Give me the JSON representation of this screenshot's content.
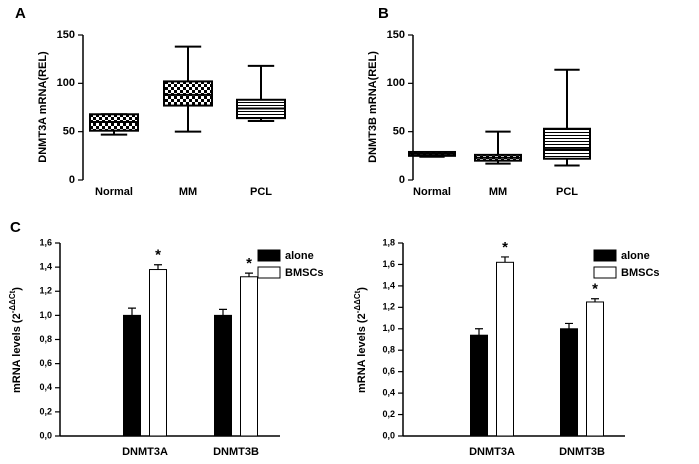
{
  "chart_data": [
    {
      "type": "box",
      "panel_label": "A",
      "ylabel": "DNMT3A mRNA(REL)",
      "categories": [
        "Normal",
        "MM",
        "PCL"
      ],
      "boxes": [
        {
          "min": 47,
          "q1": 51,
          "median": 60,
          "q3": 68,
          "max": 68
        },
        {
          "min": 50,
          "q1": 77,
          "median": 88,
          "q3": 102,
          "max": 138
        },
        {
          "min": 61,
          "q1": 64,
          "median": 74,
          "q3": 83,
          "max": 118
        }
      ],
      "patterns": [
        "checker",
        "checker",
        "lines"
      ],
      "ylim": [
        0,
        150
      ],
      "yticks": [
        0,
        50,
        100,
        150
      ]
    },
    {
      "type": "box",
      "panel_label": "B",
      "ylabel": "DNMT3B mRNA(REL)",
      "categories": [
        "Normal",
        "MM",
        "PCL"
      ],
      "boxes": [
        {
          "min": 24,
          "q1": 25,
          "median": 27,
          "q3": 29,
          "max": 29
        },
        {
          "min": 17,
          "q1": 20,
          "median": 23,
          "q3": 26,
          "max": 50
        },
        {
          "min": 15,
          "q1": 22,
          "median": 32,
          "q3": 53,
          "max": 114
        }
      ],
      "patterns": [
        "checker",
        "checker",
        "lines"
      ],
      "ylim": [
        0,
        150
      ],
      "yticks": [
        0,
        50,
        100,
        150
      ]
    },
    {
      "type": "bar",
      "panel_label": "C",
      "ylabel": {
        "base": "mRNA levels (2",
        "superscript": "-ΔΔCt",
        "end": ")"
      },
      "categories": [
        "DNMT3A",
        "DNMT3B"
      ],
      "series": [
        {
          "name": "alone",
          "color": "#000000",
          "values": [
            1.0,
            1.0
          ],
          "errors": [
            0.06,
            0.05
          ]
        },
        {
          "name": "BMSCs",
          "color": "#ffffff",
          "values": [
            1.38,
            1.32
          ],
          "errors": [
            0.04,
            0.03
          ],
          "annotations": [
            "*",
            "*"
          ]
        }
      ],
      "ylim": [
        0,
        1.6
      ],
      "yticks": [
        {
          "value": 0,
          "label": "0,0"
        },
        {
          "value": 0.2,
          "label": "0,2"
        },
        {
          "value": 0.4,
          "label": "0,4"
        },
        {
          "value": 0.6,
          "label": "0,6"
        },
        {
          "value": 0.8,
          "label": "0,8"
        },
        {
          "value": 1.0,
          "label": "1,0"
        },
        {
          "value": 1.2,
          "label": "1,2"
        },
        {
          "value": 1.4,
          "label": "1,4"
        },
        {
          "value": 1.6,
          "label": "1,6"
        }
      ]
    },
    {
      "type": "bar",
      "ylabel": {
        "base": "mRNA levels (2",
        "superscript": "-ΔΔCt",
        "end": ")"
      },
      "categories": [
        "DNMT3A",
        "DNMT3B"
      ],
      "series": [
        {
          "name": "alone",
          "color": "#000000",
          "values": [
            0.94,
            1.0
          ],
          "errors": [
            0.06,
            0.05
          ]
        },
        {
          "name": "BMSCs",
          "color": "#ffffff",
          "values": [
            1.62,
            1.25
          ],
          "errors": [
            0.05,
            0.03
          ],
          "annotations": [
            "*",
            "*"
          ]
        }
      ],
      "ylim": [
        0,
        1.8
      ],
      "yticks": [
        {
          "value": 0,
          "label": "0,0"
        },
        {
          "value": 0.2,
          "label": "0,2"
        },
        {
          "value": 0.4,
          "label": "0,4"
        },
        {
          "value": 0.6,
          "label": "0,6"
        },
        {
          "value": 0.8,
          "label": "0,8"
        },
        {
          "value": 1.0,
          "label": "1,0"
        },
        {
          "value": 1.2,
          "label": "1,2"
        },
        {
          "value": 1.4,
          "label": "1,4"
        },
        {
          "value": 1.6,
          "label": "1,6"
        },
        {
          "value": 1.8,
          "label": "1,8"
        }
      ]
    }
  ]
}
